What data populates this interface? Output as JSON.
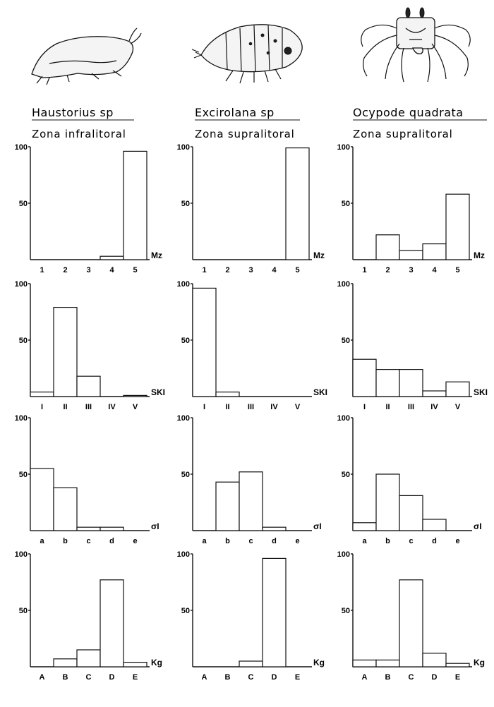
{
  "columns": [
    {
      "species": "Haustorius sp",
      "zone": "Zona infralitoral"
    },
    {
      "species": "Excirolana sp",
      "zone": "Zona supralitoral"
    },
    {
      "species": "Ocypode quadrata",
      "zone": "Zona supralitoral"
    }
  ],
  "chart_data": [
    {
      "type": "bar",
      "panel": "Haustorius sp – Mz",
      "variable": "Mz",
      "categories": [
        "1",
        "2",
        "3",
        "4",
        "5"
      ],
      "values": [
        0,
        0,
        0,
        3,
        96
      ],
      "ylim": [
        0,
        100
      ],
      "yticks": [
        100,
        50
      ]
    },
    {
      "type": "bar",
      "panel": "Excirolana sp – Mz",
      "variable": "Mz",
      "categories": [
        "1",
        "2",
        "3",
        "4",
        "5"
      ],
      "values": [
        0,
        0,
        0,
        0,
        99
      ],
      "ylim": [
        0,
        100
      ],
      "yticks": [
        100,
        50
      ]
    },
    {
      "type": "bar",
      "panel": "Ocypode quadrata – Mz",
      "variable": "Mz",
      "categories": [
        "1",
        "2",
        "3",
        "4",
        "5"
      ],
      "values": [
        0,
        22,
        8,
        14,
        58
      ],
      "ylim": [
        0,
        100
      ],
      "yticks": [
        100,
        50
      ]
    },
    {
      "type": "bar",
      "panel": "Haustorius sp – SKI",
      "variable": "SKI",
      "categories": [
        "I",
        "II",
        "III",
        "IV",
        "V"
      ],
      "values": [
        4,
        79,
        18,
        0,
        1
      ],
      "ylim": [
        0,
        100
      ],
      "yticks": [
        100,
        50
      ]
    },
    {
      "type": "bar",
      "panel": "Excirolana sp – SKI",
      "variable": "SKI",
      "categories": [
        "I",
        "II",
        "III",
        "IV",
        "V"
      ],
      "values": [
        96,
        4,
        0,
        0,
        0
      ],
      "ylim": [
        0,
        100
      ],
      "yticks": [
        100,
        50
      ]
    },
    {
      "type": "bar",
      "panel": "Ocypode quadrata – SKI",
      "variable": "SKI",
      "categories": [
        "I",
        "II",
        "III",
        "IV",
        "V"
      ],
      "values": [
        33,
        24,
        24,
        5,
        13
      ],
      "ylim": [
        0,
        100
      ],
      "yticks": [
        100,
        50
      ]
    },
    {
      "type": "bar",
      "panel": "Haustorius sp – σI",
      "variable": "σI",
      "categories": [
        "a",
        "b",
        "c",
        "d",
        "e"
      ],
      "values": [
        55,
        38,
        3,
        3,
        0
      ],
      "ylim": [
        0,
        100
      ],
      "yticks": [
        100,
        50
      ]
    },
    {
      "type": "bar",
      "panel": "Excirolana sp – σI",
      "variable": "σI",
      "categories": [
        "a",
        "b",
        "c",
        "d",
        "e"
      ],
      "values": [
        0,
        43,
        52,
        3,
        0
      ],
      "ylim": [
        0,
        100
      ],
      "yticks": [
        100,
        50
      ]
    },
    {
      "type": "bar",
      "panel": "Ocypode quadrata – σI",
      "variable": "σI",
      "categories": [
        "a",
        "b",
        "c",
        "d",
        "e"
      ],
      "values": [
        7,
        50,
        31,
        10,
        0
      ],
      "ylim": [
        0,
        100
      ],
      "yticks": [
        100,
        50
      ]
    },
    {
      "type": "bar",
      "panel": "Haustorius sp – Kg",
      "variable": "Kg",
      "categories": [
        "A",
        "B",
        "C",
        "D",
        "E"
      ],
      "values": [
        0,
        7,
        15,
        77,
        4
      ],
      "ylim": [
        0,
        100
      ],
      "yticks": [
        100,
        50
      ]
    },
    {
      "type": "bar",
      "panel": "Excirolana sp – Kg",
      "variable": "Kg",
      "categories": [
        "A",
        "B",
        "C",
        "D",
        "E"
      ],
      "values": [
        0,
        0,
        5,
        96,
        0
      ],
      "ylim": [
        0,
        100
      ],
      "yticks": [
        100,
        50
      ]
    },
    {
      "type": "bar",
      "panel": "Ocypode quadrata – Kg",
      "variable": "Kg",
      "categories": [
        "A",
        "B",
        "C",
        "D",
        "E"
      ],
      "values": [
        6,
        6,
        77,
        12,
        3
      ],
      "ylim": [
        0,
        100
      ],
      "yticks": [
        100,
        50
      ]
    }
  ]
}
